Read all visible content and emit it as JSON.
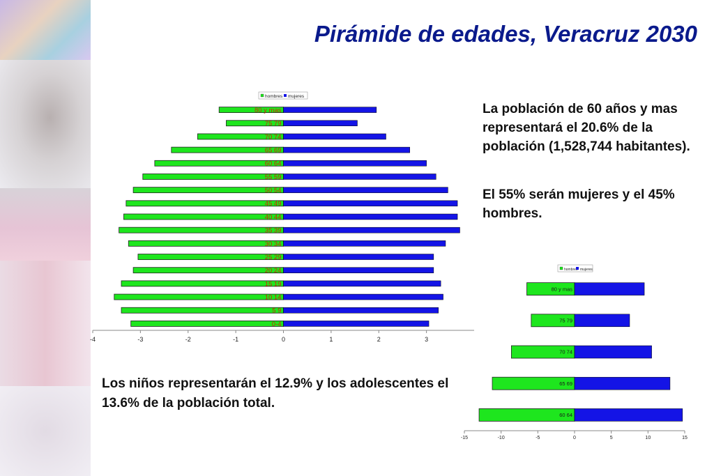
{
  "title": "Pirámide de edades, Veracruz 2030",
  "text_1": "La población de 60 años y mas representará el 20.6% de la población (1,528,744 habitantes).",
  "text_2": "El 55% serán mujeres y el 45% hombres.",
  "text_3": "Los niños representarán el 12.9% y los adolescentes el 13.6% de la población total.",
  "colors": {
    "hombres": "#1ee61e",
    "mujeres": "#1414e6",
    "title": "#0a1a8c",
    "age_label": "#cc2a00"
  },
  "chart_data": [
    {
      "type": "bar",
      "orientation": "horizontal-pyramid",
      "legend": "top",
      "grid": false,
      "categories": [
        "0-4",
        "5 9",
        "10 14",
        "15 19",
        "20 24",
        "25 29",
        "30 34",
        "35 39",
        "40 44",
        "45 49",
        "50 54",
        "55 59",
        "60 64",
        "65 69",
        "70 74",
        "75 79",
        "80 y mas"
      ],
      "series": [
        {
          "name": "hombres",
          "values": [
            -3.2,
            -3.4,
            -3.55,
            -3.4,
            -3.15,
            -3.05,
            -3.25,
            -3.45,
            -3.35,
            -3.3,
            -3.15,
            -2.95,
            -2.7,
            -2.35,
            -1.8,
            -1.2,
            -1.35
          ]
        },
        {
          "name": "mujeres",
          "values": [
            3.05,
            3.25,
            3.35,
            3.3,
            3.15,
            3.15,
            3.4,
            3.7,
            3.65,
            3.65,
            3.45,
            3.2,
            3.0,
            2.65,
            2.15,
            1.55,
            1.95
          ]
        }
      ],
      "xlim": [
        -4,
        4
      ],
      "xticks": [
        "-4",
        "-3",
        "-2",
        "-1",
        "0",
        "1",
        "2",
        "3"
      ]
    },
    {
      "type": "bar",
      "orientation": "horizontal-pyramid",
      "legend": "top",
      "grid": false,
      "categories": [
        "60 64",
        "65 69",
        "70 74",
        "75 79",
        "80 y mas"
      ],
      "series": [
        {
          "name": "hombres",
          "values": [
            -13.0,
            -11.2,
            -8.6,
            -5.9,
            -6.5
          ]
        },
        {
          "name": "mujeres",
          "values": [
            14.7,
            13.0,
            10.5,
            7.5,
            9.5
          ]
        }
      ],
      "xlim": [
        -15,
        15
      ],
      "xticks": [
        "-15",
        "-10",
        "-5",
        "0",
        "5",
        "10",
        "15"
      ]
    }
  ]
}
